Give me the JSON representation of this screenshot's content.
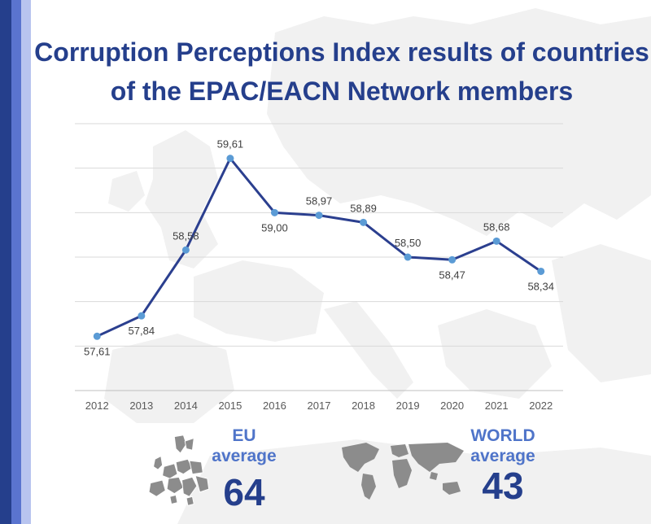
{
  "title_lines": [
    "Corruption Perceptions Index results of countries",
    "of the EPAC/EACN Network members"
  ],
  "chart_data": {
    "type": "line",
    "title": "Corruption Perceptions Index results of countries of the EPAC/EACN Network members",
    "x": [
      "2012",
      "2013",
      "2014",
      "2015",
      "2016",
      "2017",
      "2018",
      "2019",
      "2020",
      "2021",
      "2022"
    ],
    "series": [
      {
        "values": [
          57.61,
          57.84,
          58.58,
          59.61,
          59.0,
          58.97,
          58.89,
          58.5,
          58.47,
          58.68,
          58.34
        ],
        "labels": [
          "57,61",
          "57,84",
          "58,58",
          "59,61",
          "59,00",
          "58,97",
          "58,89",
          "58,50",
          "58,47",
          "58,68",
          "58,34"
        ]
      }
    ],
    "ylim": [
      57.0,
      60.0
    ],
    "grid": true,
    "y_tick_labels_visible": false,
    "legend": "none",
    "colors": {
      "line": "#2b3f8f",
      "marker": "#5b9bd5",
      "grid": "#d9d9d9"
    }
  },
  "eu": {
    "line1": "EU",
    "line2": "average",
    "value": "64"
  },
  "world": {
    "line1": "WORLD",
    "line2": "average",
    "value": "43"
  },
  "colors": {
    "title": "#253f8c",
    "accent_label": "#4f74c9",
    "stripe_dark": "#253f8c",
    "stripe_mid": "#5a74cf",
    "stripe_light": "#b8c4ef"
  }
}
